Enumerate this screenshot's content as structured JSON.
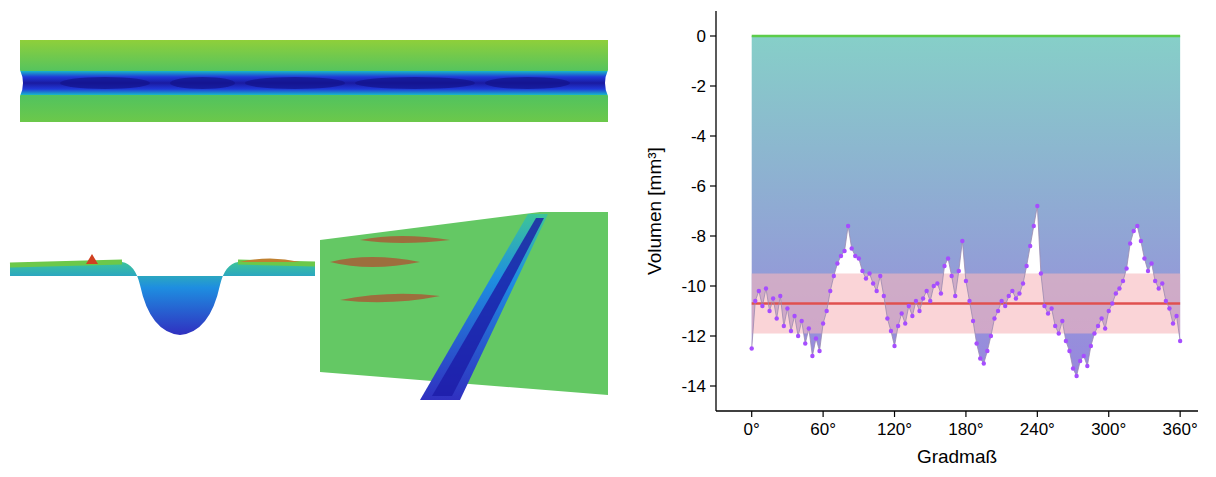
{
  "chart_data": {
    "type": "scatter",
    "xlabel": "Gradmaß",
    "ylabel": "Volumen [mm³]",
    "xlim": [
      -30,
      375
    ],
    "ylim": [
      -15,
      1
    ],
    "xticks": [
      {
        "value": 0,
        "label": "0°"
      },
      {
        "value": 60,
        "label": "60°"
      },
      {
        "value": 120,
        "label": "120°"
      },
      {
        "value": 180,
        "label": "180°"
      },
      {
        "value": 240,
        "label": "240°"
      },
      {
        "value": 300,
        "label": "300°"
      },
      {
        "value": 360,
        "label": "360°"
      }
    ],
    "yticks": [
      -14,
      -12,
      -10,
      -8,
      -6,
      -4,
      -2,
      0
    ],
    "grid": false,
    "series": [
      {
        "color": "#a64dff",
        "marker": "circle",
        "line_style": "solid",
        "x": [
          0,
          3,
          6,
          9,
          12,
          15,
          18,
          21,
          24,
          27,
          30,
          33,
          36,
          39,
          42,
          45,
          48,
          51,
          54,
          57,
          60,
          63,
          66,
          69,
          72,
          75,
          78,
          81,
          84,
          87,
          90,
          93,
          96,
          99,
          102,
          105,
          108,
          111,
          114,
          117,
          120,
          123,
          126,
          129,
          132,
          135,
          138,
          141,
          144,
          147,
          150,
          153,
          156,
          159,
          162,
          165,
          168,
          171,
          174,
          177,
          180,
          183,
          186,
          189,
          192,
          195,
          198,
          201,
          204,
          207,
          210,
          213,
          216,
          219,
          222,
          225,
          228,
          231,
          234,
          237,
          240,
          243,
          246,
          249,
          252,
          255,
          258,
          261,
          264,
          267,
          270,
          273,
          276,
          279,
          282,
          285,
          288,
          291,
          294,
          297,
          300,
          303,
          306,
          309,
          312,
          315,
          318,
          321,
          324,
          327,
          330,
          333,
          336,
          339,
          342,
          345,
          348,
          351,
          354,
          357,
          360
        ],
        "values": [
          -12.5,
          -10.6,
          -10.2,
          -10.8,
          -10.1,
          -11.0,
          -10.5,
          -11.3,
          -10.4,
          -11.6,
          -10.9,
          -11.8,
          -11.2,
          -12.0,
          -11.4,
          -12.3,
          -11.7,
          -12.8,
          -12.1,
          -12.6,
          -11.5,
          -11.0,
          -10.2,
          -9.6,
          -9.1,
          -8.8,
          -8.6,
          -7.6,
          -8.5,
          -8.8,
          -8.9,
          -9.4,
          -9.7,
          -9.5,
          -9.9,
          -10.2,
          -9.6,
          -10.4,
          -11.3,
          -11.8,
          -12.4,
          -11.6,
          -11.1,
          -11.5,
          -10.8,
          -11.2,
          -10.6,
          -11.0,
          -10.5,
          -10.2,
          -10.6,
          -10.0,
          -9.9,
          -10.3,
          -9.2,
          -8.9,
          -9.6,
          -10.4,
          -9.4,
          -8.2,
          -9.8,
          -10.6,
          -11.4,
          -12.3,
          -12.9,
          -13.1,
          -12.6,
          -12.0,
          -11.3,
          -11.0,
          -10.6,
          -10.8,
          -10.4,
          -10.2,
          -10.5,
          -10.3,
          -9.9,
          -9.2,
          -8.4,
          -7.6,
          -6.8,
          -9.5,
          -10.8,
          -11.1,
          -10.9,
          -11.6,
          -11.9,
          -11.4,
          -12.2,
          -12.6,
          -13.3,
          -13.6,
          -13.0,
          -12.8,
          -13.2,
          -12.4,
          -11.9,
          -11.6,
          -11.3,
          -11.7,
          -11.0,
          -10.7,
          -10.3,
          -10.1,
          -9.8,
          -9.3,
          -8.3,
          -7.8,
          -7.6,
          -8.2,
          -8.9,
          -9.4,
          -9.1,
          -9.8,
          -10.1,
          -9.9,
          -10.6,
          -10.9,
          -11.5,
          -11.2,
          -12.2
        ]
      }
    ],
    "reference_lines": [
      {
        "value": 0,
        "color": "#5ccc4a"
      },
      {
        "value": -10.7,
        "color": "#e0504f"
      }
    ],
    "band": {
      "low": -11.9,
      "high": -9.5,
      "color": "#f7b8bd"
    }
  }
}
